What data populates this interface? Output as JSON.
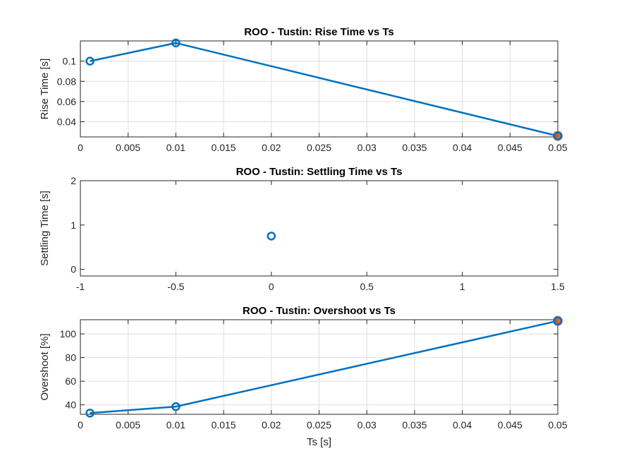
{
  "figure": {
    "background": "#ffffff"
  },
  "colors": {
    "line": "#0072BD",
    "highlight": "#D95319",
    "grid": "#dfdfdf",
    "axis": "#262626"
  },
  "chart_data": [
    {
      "type": "line",
      "title": "ROO - Tustin: Rise Time vs Ts",
      "xlabel": "",
      "ylabel": "Rise Time [s]",
      "xlim": [
        0,
        0.05
      ],
      "ylim": [
        0.025,
        0.12
      ],
      "xticks": [
        0,
        0.005,
        0.01,
        0.015,
        0.02,
        0.025,
        0.03,
        0.035,
        0.04,
        0.045,
        0.05
      ],
      "xtick_labels": [
        "0",
        "0.005",
        "0.01",
        "0.015",
        "0.02",
        "0.025",
        "0.03",
        "0.035",
        "0.04",
        "0.045",
        "0.05"
      ],
      "yticks": [
        0.04,
        0.06,
        0.08,
        0.1
      ],
      "ytick_labels": [
        "0.04",
        "0.06",
        "0.08",
        "0.1"
      ],
      "grid": true,
      "x": [
        0.001,
        0.01,
        0.05
      ],
      "y": [
        0.1,
        0.118,
        0.026
      ],
      "marker": "o",
      "highlight_index": 2
    },
    {
      "type": "scatter",
      "title": "ROO - Tustin: Settling Time vs Ts",
      "xlabel": "",
      "ylabel": "Settling Time [s]",
      "xlim": [
        -1,
        1.5
      ],
      "ylim": [
        -0.15,
        2
      ],
      "xticks": [
        -1,
        -0.5,
        0,
        0.5,
        1,
        1.5
      ],
      "xtick_labels": [
        "-1",
        "-0.5",
        "0",
        "0.5",
        "1",
        "1.5"
      ],
      "yticks": [
        0,
        1,
        2
      ],
      "ytick_labels": [
        "0",
        "1",
        "2"
      ],
      "grid": false,
      "x": [
        0
      ],
      "y": [
        0.75
      ],
      "marker": "o"
    },
    {
      "type": "line",
      "title": "ROO - Tustin: Overshoot vs Ts",
      "xlabel": "Ts [s]",
      "ylabel": "Overshoot [%]",
      "xlim": [
        0,
        0.05
      ],
      "ylim": [
        32,
        112
      ],
      "xticks": [
        0,
        0.005,
        0.01,
        0.015,
        0.02,
        0.025,
        0.03,
        0.035,
        0.04,
        0.045,
        0.05
      ],
      "xtick_labels": [
        "0",
        "0.005",
        "0.01",
        "0.015",
        "0.02",
        "0.025",
        "0.03",
        "0.035",
        "0.04",
        "0.045",
        "0.05"
      ],
      "yticks": [
        40,
        60,
        80,
        100
      ],
      "ytick_labels": [
        "40",
        "60",
        "80",
        "100"
      ],
      "grid": true,
      "x": [
        0.001,
        0.01,
        0.05
      ],
      "y": [
        33,
        38.5,
        111
      ],
      "marker": "o",
      "highlight_index": 2
    }
  ]
}
